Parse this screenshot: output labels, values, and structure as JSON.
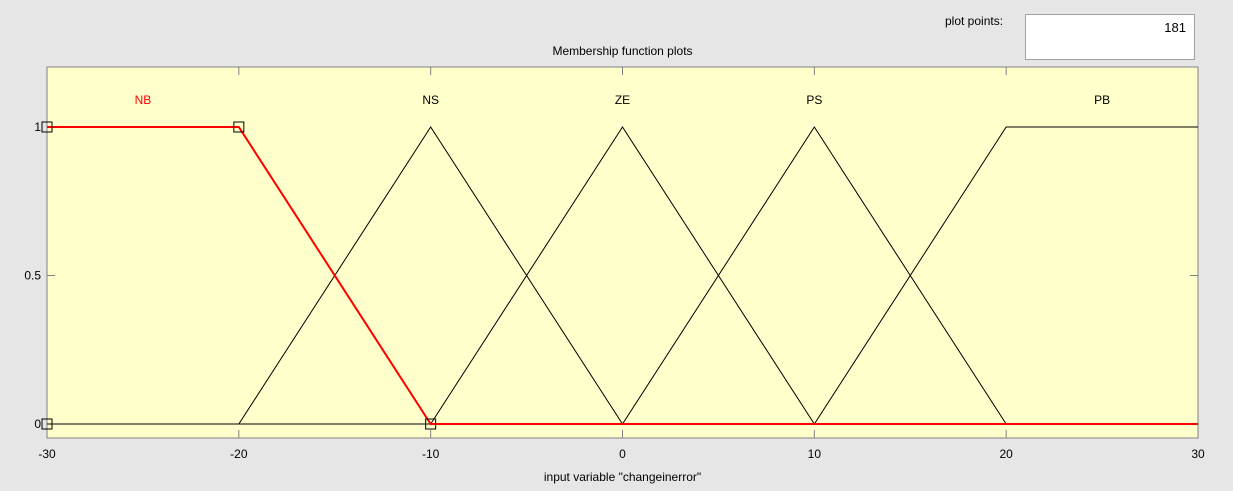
{
  "plot_points": {
    "label": "plot points:",
    "value": "181"
  },
  "plot_title": "Membership function plots",
  "x_axis_label": "input variable \"changeinerror\"",
  "colors": {
    "background": "#ffffcc",
    "selected": "#ff0000",
    "line": "#000000",
    "window": "#e6e6e6"
  },
  "chart_data": {
    "type": "line",
    "title": "Membership function plots",
    "xlabel": "input variable \"changeinerror\"",
    "ylabel": "",
    "xlim": [
      -30,
      30
    ],
    "ylim": [
      0,
      1
    ],
    "x_ticks": [
      "-30",
      "-20",
      "-10",
      "0",
      "10",
      "20",
      "30"
    ],
    "y_ticks": [
      "0",
      "0.5",
      "1"
    ],
    "selected_series": "NB",
    "series": [
      {
        "name": "NB",
        "points": [
          [
            -30,
            1
          ],
          [
            -20,
            1
          ],
          [
            -10,
            0
          ],
          [
            30,
            0
          ]
        ]
      },
      {
        "name": "NS",
        "points": [
          [
            -30,
            0
          ],
          [
            -20,
            0
          ],
          [
            -10,
            1
          ],
          [
            0,
            0
          ],
          [
            30,
            0
          ]
        ]
      },
      {
        "name": "ZE",
        "points": [
          [
            -30,
            0
          ],
          [
            -10,
            0
          ],
          [
            0,
            1
          ],
          [
            10,
            0
          ],
          [
            30,
            0
          ]
        ]
      },
      {
        "name": "PS",
        "points": [
          [
            -30,
            0
          ],
          [
            0,
            0
          ],
          [
            10,
            1
          ],
          [
            20,
            0
          ],
          [
            30,
            0
          ]
        ]
      },
      {
        "name": "PB",
        "points": [
          [
            -30,
            0
          ],
          [
            10,
            0
          ],
          [
            20,
            1
          ],
          [
            30,
            1
          ]
        ]
      }
    ]
  }
}
